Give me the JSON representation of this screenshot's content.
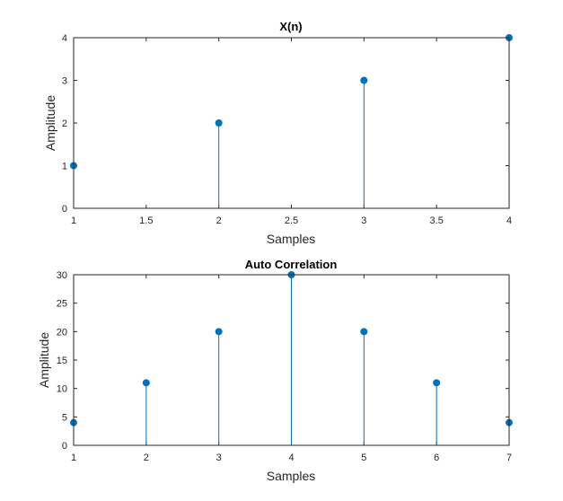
{
  "chart_data": [
    {
      "type": "stem",
      "title": "X(n)",
      "xlabel": "Samples",
      "ylabel": "Amplitude",
      "xlim": [
        1,
        4
      ],
      "ylim": [
        0,
        4
      ],
      "xticks": [
        1,
        1.5,
        2,
        2.5,
        3,
        3.5,
        4
      ],
      "yticks": [
        0,
        1,
        2,
        3,
        4
      ],
      "x": [
        1,
        2,
        3,
        4
      ],
      "values": [
        1,
        2,
        3,
        4
      ],
      "color": "#0072BD",
      "grid": false
    },
    {
      "type": "stem",
      "title": "Auto Correlation",
      "xlabel": "Samples",
      "ylabel": "Amplitude",
      "xlim": [
        1,
        7
      ],
      "ylim": [
        0,
        30
      ],
      "xticks": [
        1,
        2,
        3,
        4,
        5,
        6,
        7
      ],
      "yticks": [
        0,
        5,
        10,
        15,
        20,
        25,
        30
      ],
      "x": [
        1,
        2,
        3,
        4,
        5,
        6,
        7
      ],
      "values": [
        4,
        11,
        20,
        30,
        20,
        11,
        4
      ],
      "color": "#0072BD",
      "grid": false
    }
  ]
}
